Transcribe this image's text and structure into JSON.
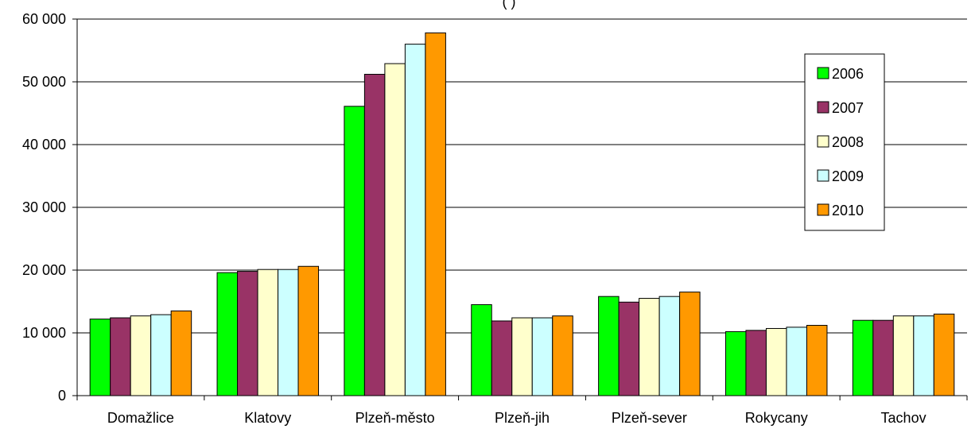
{
  "chart_data": {
    "type": "bar",
    "title_fragment": "(                              )",
    "categories": [
      "Domažlice",
      "Klatovy",
      "Plzeň-město",
      "Plzeň-jih",
      "Plzeň-sever",
      "Rokycany",
      "Tachov"
    ],
    "series": [
      {
        "name": "2006",
        "color": "#00ff00",
        "values": [
          12200,
          19600,
          46100,
          14500,
          15800,
          10200,
          12000
        ]
      },
      {
        "name": "2007",
        "color": "#993366",
        "values": [
          12400,
          19800,
          51200,
          11900,
          14900,
          10400,
          12000
        ]
      },
      {
        "name": "2008",
        "color": "#ffffcc",
        "values": [
          12700,
          20100,
          52900,
          12400,
          15500,
          10700,
          12700
        ]
      },
      {
        "name": "2009",
        "color": "#ccffff",
        "values": [
          12900,
          20100,
          56000,
          12400,
          15800,
          10900,
          12700
        ]
      },
      {
        "name": "2010",
        "color": "#ff9900",
        "values": [
          13500,
          20600,
          57800,
          12700,
          16500,
          11200,
          13000
        ]
      }
    ],
    "y_ticks": [
      "0",
      "10 000",
      "20 000",
      "30 000",
      "40 000",
      "50 000",
      "60 000"
    ],
    "ylim": [
      0,
      60000
    ],
    "grid": true,
    "legend_position": "right"
  }
}
